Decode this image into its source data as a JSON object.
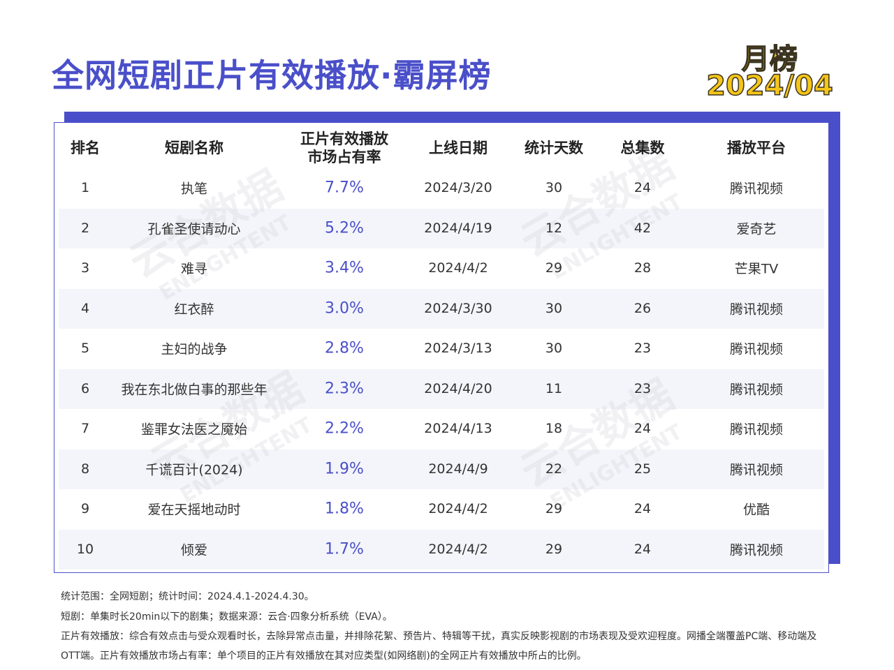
{
  "header": {
    "title": "全网短剧正片有效播放·霸屏榜",
    "badge_line1": "月榜",
    "badge_line2": "2024/04"
  },
  "watermark": {
    "cn": "云合数据",
    "en": "ENLIGHTENT"
  },
  "table": {
    "columns": [
      "排名",
      "短剧名称",
      "正片有效播放\n市场占有率",
      "上线日期",
      "统计天数",
      "总集数",
      "播放平台"
    ],
    "rows": [
      [
        "1",
        "执笔",
        "7.7%",
        "2024/3/20",
        "30",
        "24",
        "腾讯视频"
      ],
      [
        "2",
        "孔雀圣使请动心",
        "5.2%",
        "2024/4/19",
        "12",
        "42",
        "爱奇艺"
      ],
      [
        "3",
        "难寻",
        "3.4%",
        "2024/4/2",
        "29",
        "28",
        "芒果TV"
      ],
      [
        "4",
        "红衣醉",
        "3.0%",
        "2024/3/30",
        "30",
        "26",
        "腾讯视频"
      ],
      [
        "5",
        "主妇的战争",
        "2.8%",
        "2024/3/13",
        "30",
        "23",
        "腾讯视频"
      ],
      [
        "6",
        "我在东北做白事的那些年",
        "2.3%",
        "2024/4/20",
        "11",
        "23",
        "腾讯视频"
      ],
      [
        "7",
        "鉴罪女法医之魇始",
        "2.2%",
        "2024/4/13",
        "18",
        "24",
        "腾讯视频"
      ],
      [
        "8",
        "千谎百计(2024)",
        "1.9%",
        "2024/4/9",
        "22",
        "25",
        "腾讯视频"
      ],
      [
        "9",
        "爱在天摇地动时",
        "1.8%",
        "2024/4/2",
        "29",
        "24",
        "优酷"
      ],
      [
        "10",
        "倾爱",
        "1.7%",
        "2024/4/2",
        "29",
        "24",
        "腾讯视频"
      ]
    ]
  },
  "notes": [
    "统计范围：全网短剧；统计时间：2024.4.1-2024.4.30。",
    "短剧：单集时长20min以下的剧集；数据来源：云合·四象分析系统（EVA）。",
    "正片有效播放：综合有效点击与受众观看时长，去除异常点击量，并排除花絮、预告片、特辑等干扰，真实反映影视剧的市场表现及受欢迎程度。网播全端覆盖PC端、移动端及OTT端。正片有效播放市场占有率：单个项目的正片有效播放在其对应类型(如网络剧)的全网正片有效播放中所占的比例。"
  ]
}
